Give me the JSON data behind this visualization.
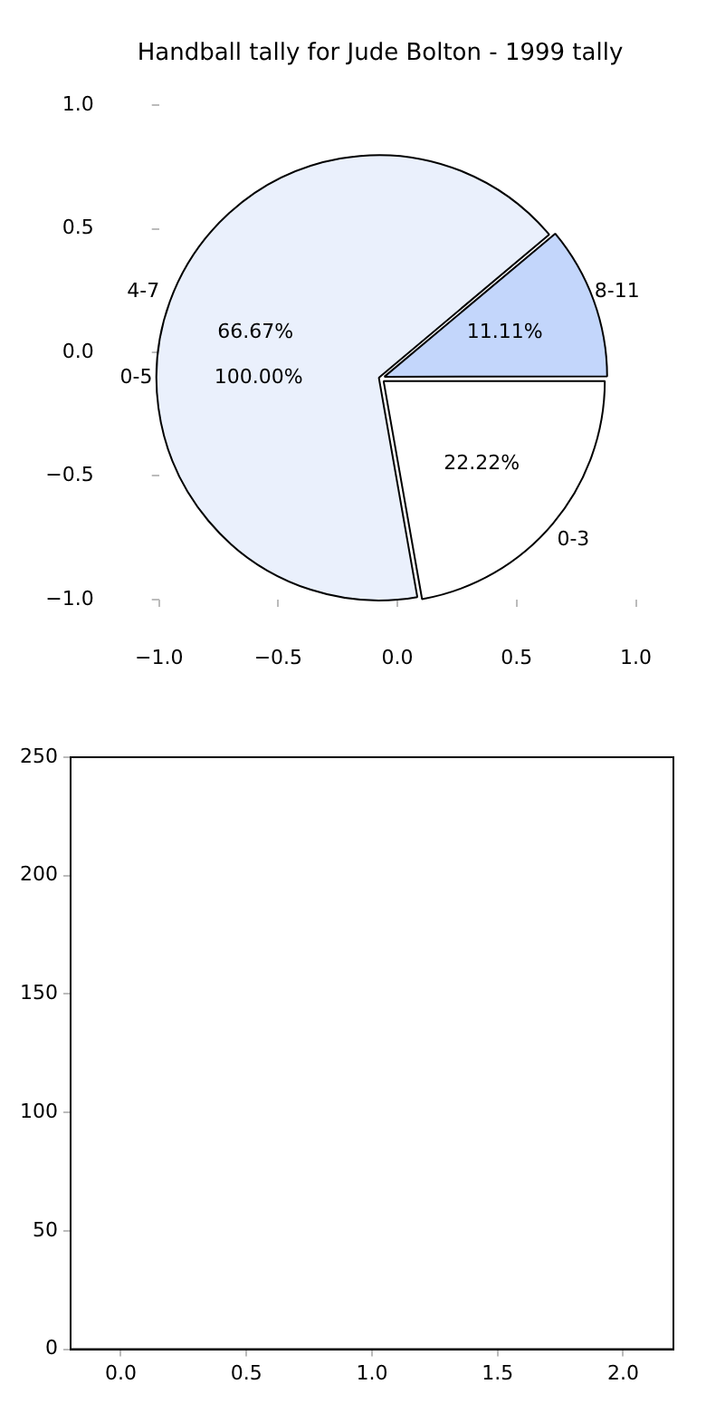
{
  "chart_data": [
    {
      "type": "pie",
      "title": "Handball tally for Jude Bolton - 1999 tally",
      "categories": [
        "0-3",
        "4-7",
        "8-11"
      ],
      "values": [
        22.22,
        66.67,
        11.11
      ],
      "value_labels": [
        "22.22%",
        "66.67%",
        "11.11%"
      ],
      "colors": [
        "#ffffff",
        "#eaf0fc",
        "#c3d6fb"
      ],
      "annotations": [
        "0-5",
        "100.00%"
      ]
    },
    {
      "type": "scatter",
      "xlim": [
        -1,
        1
      ],
      "ylim": [
        -1,
        1
      ],
      "xticks": [
        {
          "value": -1,
          "label": "−1.0"
        },
        {
          "value": -0.5,
          "label": "−0.5"
        },
        {
          "value": 0,
          "label": "0.0"
        },
        {
          "value": 0.5,
          "label": "0.5"
        },
        {
          "value": 1,
          "label": "1.0"
        }
      ],
      "yticks": [
        {
          "value": -1,
          "label": "−1.0"
        },
        {
          "value": -0.5,
          "label": "−0.5"
        },
        {
          "value": 0,
          "label": "0.0"
        },
        {
          "value": 0.5,
          "label": "0.5"
        },
        {
          "value": 1,
          "label": "1.0"
        }
      ],
      "grid": false
    },
    {
      "type": "scatter",
      "xlim": [
        -0.2,
        2.2
      ],
      "ylim": [
        0,
        250
      ],
      "xticks": [
        {
          "value": 0,
          "label": "0.0"
        },
        0.5,
        {
          "value": 1,
          "label": "1.0"
        },
        1.5,
        {
          "value": 2,
          "label": "2.0"
        }
      ],
      "yticks": [
        0,
        50,
        100,
        150,
        200,
        250
      ],
      "grid": false
    }
  ]
}
